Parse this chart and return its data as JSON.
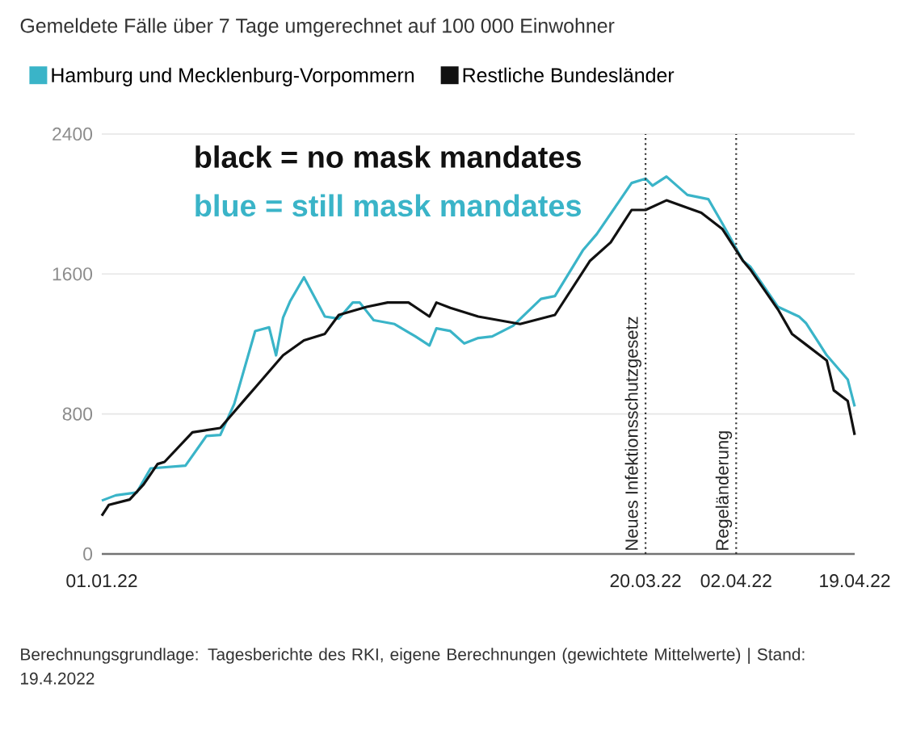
{
  "chart_data": {
    "type": "line",
    "title": "Gemeldete Fälle über 7 Tage umgerechnet auf 100 000 Einwohner",
    "series": [
      {
        "name": "Hamburg und Mecklenburg-Vorpommern",
        "color": "#3ab4c8",
        "x": [
          "2022-01-01",
          "2022-01-03",
          "2022-01-06",
          "2022-01-08",
          "2022-01-13",
          "2022-01-16",
          "2022-01-18",
          "2022-01-20",
          "2022-01-23",
          "2022-01-25",
          "2022-01-26",
          "2022-01-27",
          "2022-01-28",
          "2022-01-30",
          "2022-02-02",
          "2022-02-04",
          "2022-02-06",
          "2022-02-07",
          "2022-02-09",
          "2022-02-12",
          "2022-02-15",
          "2022-02-17",
          "2022-02-18",
          "2022-02-20",
          "2022-02-22",
          "2022-02-24",
          "2022-02-26",
          "2022-03-01",
          "2022-03-05",
          "2022-03-07",
          "2022-03-11",
          "2022-03-13",
          "2022-03-18",
          "2022-03-20",
          "2022-03-21",
          "2022-03-23",
          "2022-03-26",
          "2022-03-29",
          "2022-03-31",
          "2022-04-03",
          "2022-04-04",
          "2022-04-08",
          "2022-04-11",
          "2022-04-12",
          "2022-04-15",
          "2022-04-18",
          "2022-04-19"
        ],
        "values": [
          305,
          335,
          351,
          489,
          505,
          674,
          680,
          858,
          1274,
          1295,
          1135,
          1350,
          1443,
          1581,
          1357,
          1345,
          1437,
          1437,
          1336,
          1314,
          1243,
          1191,
          1289,
          1274,
          1203,
          1234,
          1243,
          1304,
          1458,
          1474,
          1735,
          1828,
          2120,
          2145,
          2105,
          2157,
          2052,
          2028,
          1890,
          1674,
          1643,
          1412,
          1357,
          1320,
          1135,
          997,
          843
        ]
      },
      {
        "name": "Restliche Bundesländer",
        "color": "#111111",
        "x": [
          "2022-01-01",
          "2022-01-02",
          "2022-01-05",
          "2022-01-07",
          "2022-01-09",
          "2022-01-10",
          "2022-01-14",
          "2022-01-18",
          "2022-01-22",
          "2022-01-23",
          "2022-01-27",
          "2022-01-30",
          "2022-02-02",
          "2022-02-04",
          "2022-02-08",
          "2022-02-11",
          "2022-02-14",
          "2022-02-17",
          "2022-02-18",
          "2022-02-20",
          "2022-02-24",
          "2022-03-02",
          "2022-03-07",
          "2022-03-12",
          "2022-03-15",
          "2022-03-18",
          "2022-03-20",
          "2022-03-23",
          "2022-03-28",
          "2022-03-31",
          "2022-04-03",
          "2022-04-04",
          "2022-04-08",
          "2022-04-10",
          "2022-04-12",
          "2022-04-15",
          "2022-04-16",
          "2022-04-18",
          "2022-04-19"
        ],
        "values": [
          219,
          280,
          311,
          397,
          514,
          526,
          695,
          720,
          905,
          951,
          1135,
          1221,
          1258,
          1366,
          1412,
          1437,
          1437,
          1357,
          1437,
          1406,
          1357,
          1314,
          1366,
          1674,
          1781,
          1966,
          1966,
          2021,
          1950,
          1858,
          1674,
          1627,
          1397,
          1258,
          1197,
          1105,
          935,
          874,
          680
        ]
      }
    ],
    "xlim": [
      "2022-01-01",
      "2022-04-19"
    ],
    "xticks": [
      {
        "value": "2022-01-01",
        "label": "01.01.22"
      },
      {
        "value": "2022-03-20",
        "label": "20.03.22"
      },
      {
        "value": "2022-04-02",
        "label": "02.04.22"
      },
      {
        "value": "2022-04-19",
        "label": "19.04.22"
      }
    ],
    "ylim": [
      0,
      2400
    ],
    "yticks": [
      0,
      800,
      1600,
      2400
    ],
    "grid": "y",
    "legend": "top left",
    "ref_lines": [
      {
        "axis": "x",
        "value": "2022-03-20",
        "label": "Neues Infektionsschutzgesetz",
        "color": "#333333",
        "line_style": "dotted"
      },
      {
        "axis": "x",
        "value": "2022-04-02",
        "label": "Regeländerung",
        "color": "#333333",
        "line_style": "dotted"
      }
    ],
    "annotations": [
      "black = no mask mandates",
      "blue = still mask mandates",
      "Berechnungsgrundlage: Tagesberichte des RKI, eigene Berechnungen (gewichtete Mittelwerte) | Stand: 19.4.2022"
    ]
  }
}
